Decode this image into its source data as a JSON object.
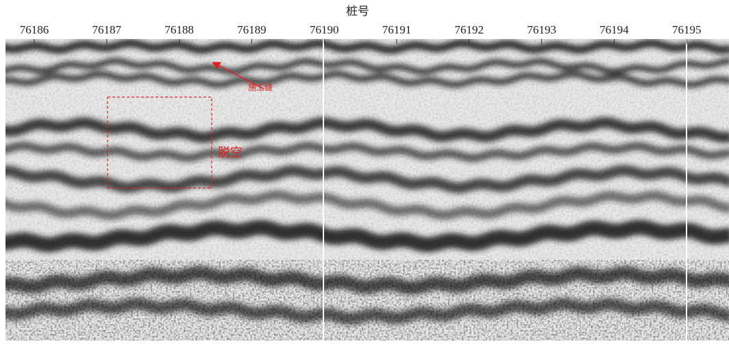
{
  "axis": {
    "title": "桩号",
    "ticks": [
      76186,
      76187,
      76188,
      76189,
      76190,
      76191,
      76192,
      76193,
      76194,
      76195
    ]
  },
  "annotations": {
    "joint": "施工缝",
    "void": "脱空"
  }
}
